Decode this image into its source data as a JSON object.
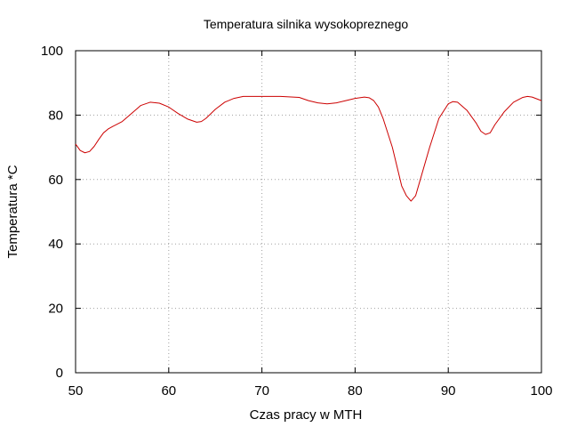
{
  "chart_data": {
    "type": "line",
    "title": "Temperatura silnika wysokopreznego",
    "xlabel": "Czas pracy w MTH",
    "ylabel": "Temperatura *C",
    "xlim": [
      50,
      100
    ],
    "ylim": [
      0,
      100
    ],
    "x_ticks": [
      50,
      60,
      70,
      80,
      90,
      100
    ],
    "y_ticks": [
      0,
      20,
      40,
      60,
      80,
      100
    ],
    "grid": true,
    "legend": "none",
    "series": [
      {
        "color": "#cc0000",
        "x": [
          50,
          50.5,
          51,
          51.5,
          52,
          52.5,
          53,
          53.5,
          54,
          55,
          56,
          57,
          58,
          59,
          60,
          61,
          62,
          63,
          63.5,
          64,
          65,
          66,
          67,
          68,
          69,
          70,
          72,
          74,
          75,
          76,
          77,
          78,
          79,
          80,
          81,
          81.5,
          82,
          82.5,
          83,
          84,
          85,
          85.5,
          86,
          86.5,
          87,
          88,
          89,
          90,
          90.5,
          91,
          92,
          93,
          93.5,
          94,
          94.5,
          95,
          96,
          97,
          98,
          98.5,
          99,
          100
        ],
        "y": [
          71,
          69,
          68.3,
          68.7,
          70.3,
          72.5,
          74.5,
          75.7,
          76.5,
          78,
          80.5,
          83,
          84,
          83.7,
          82.5,
          80.5,
          78.8,
          77.8,
          78,
          79,
          81.8,
          84,
          85.2,
          85.8,
          85.8,
          85.8,
          85.8,
          85.5,
          84.5,
          83.8,
          83.5,
          83.8,
          84.5,
          85.2,
          85.6,
          85.4,
          84.5,
          82.5,
          79,
          70,
          58,
          55,
          53.3,
          55,
          60,
          70,
          79,
          83.5,
          84.2,
          84,
          81.5,
          77.5,
          75,
          74,
          74.5,
          77,
          81,
          84,
          85.5,
          85.8,
          85.6,
          84.5
        ]
      }
    ]
  }
}
